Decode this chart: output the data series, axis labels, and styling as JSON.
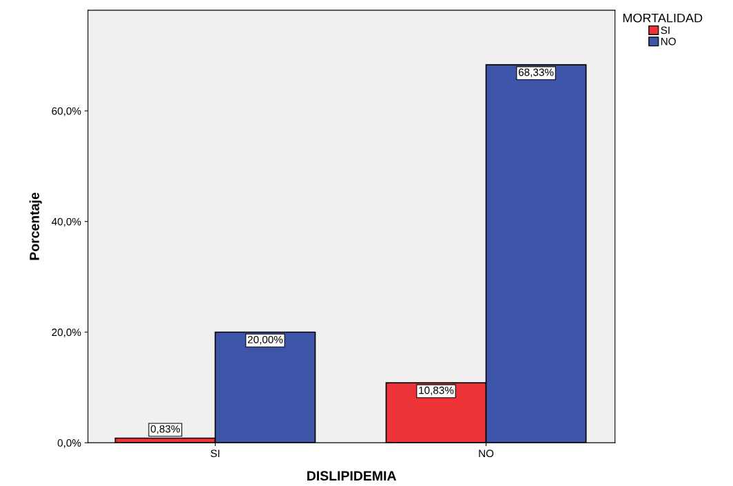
{
  "chart_data": {
    "type": "bar",
    "xlabel": "DISLIPIDEMIA",
    "ylabel": "Porcentaje",
    "legend_title": "MORTALIDAD",
    "categories": [
      "SI",
      "NO"
    ],
    "series": [
      {
        "name": "SI",
        "color": "#ee3338",
        "values": [
          0.83,
          10.83
        ],
        "value_labels": [
          "0,83%",
          "10,83%"
        ]
      },
      {
        "name": "NO",
        "color": "#3d55a8",
        "values": [
          20.0,
          68.33
        ],
        "value_labels": [
          "20,00%",
          "68,33%"
        ]
      }
    ],
    "ylim": [
      0,
      78.2
    ],
    "yticks": [
      {
        "value": 0,
        "label": "0,0%"
      },
      {
        "value": 20,
        "label": "20,0%"
      },
      {
        "value": 40,
        "label": "40,0%"
      },
      {
        "value": 60,
        "label": "60,0%"
      }
    ],
    "grid": false,
    "legend": "top right"
  }
}
